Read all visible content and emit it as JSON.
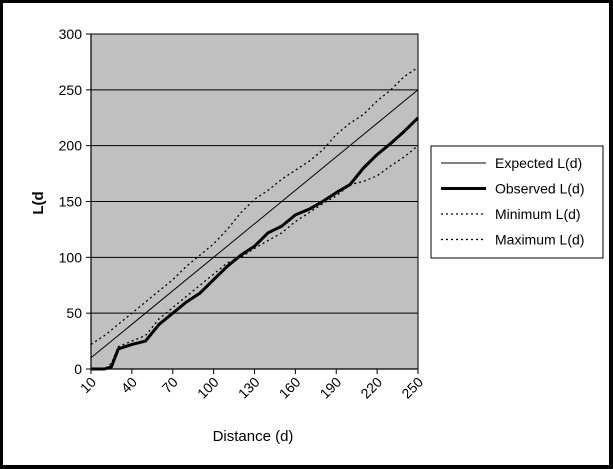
{
  "chart_data": {
    "type": "line",
    "xlabel": "Distance (d)",
    "ylabel": "L(d",
    "xlim": [
      10,
      250
    ],
    "ylim": [
      0,
      300
    ],
    "x_ticks": [
      10,
      40,
      70,
      100,
      130,
      160,
      190,
      220,
      250
    ],
    "y_ticks": [
      0,
      50,
      100,
      150,
      200,
      250,
      300
    ],
    "grid": true,
    "legend_position": "right",
    "plot_background": "#c0c0c0",
    "series": [
      {
        "name": "Expected L(d)",
        "style": "thin",
        "x": [
          10,
          250
        ],
        "y": [
          10,
          250
        ]
      },
      {
        "name": "Observed L(d)",
        "style": "thick",
        "x": [
          10,
          20,
          25,
          30,
          40,
          50,
          60,
          70,
          80,
          90,
          100,
          110,
          120,
          130,
          140,
          150,
          160,
          170,
          180,
          190,
          200,
          210,
          220,
          230,
          240,
          250
        ],
        "y": [
          0,
          0,
          2,
          18,
          22,
          25,
          40,
          50,
          60,
          68,
          80,
          92,
          102,
          110,
          122,
          128,
          138,
          143,
          150,
          158,
          165,
          180,
          192,
          202,
          213,
          225
        ]
      },
      {
        "name": "Minimum L(d)",
        "style": "dotted",
        "x": [
          10,
          20,
          25,
          30,
          40,
          50,
          60,
          70,
          80,
          90,
          100,
          110,
          120,
          130,
          140,
          150,
          160,
          170,
          180,
          190,
          200,
          210,
          220,
          230,
          240,
          250
        ],
        "y": [
          0,
          0,
          5,
          20,
          25,
          30,
          45,
          55,
          65,
          75,
          85,
          95,
          100,
          108,
          115,
          122,
          132,
          140,
          148,
          155,
          165,
          168,
          173,
          182,
          190,
          200
        ]
      },
      {
        "name": "Maximum L(d)",
        "style": "dotted",
        "x": [
          10,
          20,
          30,
          40,
          50,
          60,
          70,
          80,
          90,
          100,
          110,
          120,
          130,
          140,
          150,
          160,
          170,
          180,
          190,
          200,
          210,
          220,
          230,
          240,
          250
        ],
        "y": [
          22,
          30,
          40,
          50,
          60,
          70,
          80,
          92,
          102,
          112,
          125,
          140,
          152,
          160,
          170,
          178,
          186,
          196,
          210,
          220,
          228,
          240,
          250,
          262,
          270
        ]
      }
    ]
  }
}
